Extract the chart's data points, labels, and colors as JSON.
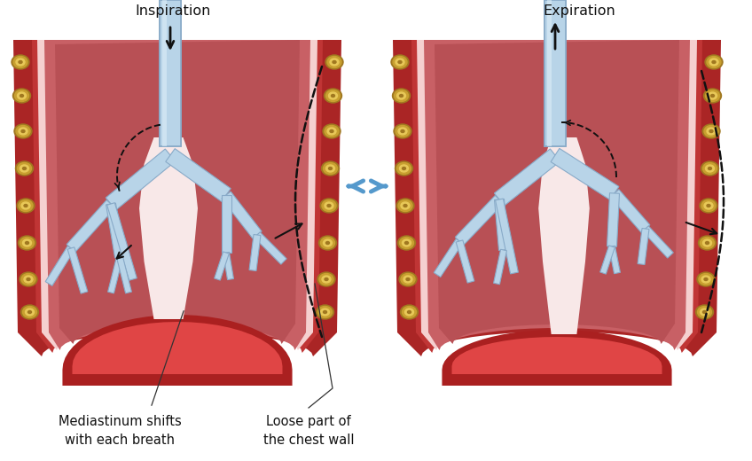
{
  "bg_color": "#ffffff",
  "lung_tissue_dark": "#b85055",
  "lung_tissue_mid": "#c86065",
  "lung_tissue_light": "#d07075",
  "chest_wall_dark": "#aa2525",
  "chest_wall_mid": "#c03535",
  "pleura_white": "#f5d0d0",
  "pleura_pink": "#f0b0b0",
  "airway_fill": "#b8d4e8",
  "airway_edge": "#88aac8",
  "airway_white": "#ddeef8",
  "diaphragm_dark": "#aa2020",
  "diaphragm_mid": "#cc3535",
  "diaphragm_light": "#e04545",
  "rib_gold": "#c8a030",
  "rib_light": "#e8c858",
  "rib_dark": "#a07820",
  "insp_label": "Inspiration",
  "exp_label": "Expiration",
  "med_label": "Mediastinum shifts\nwith each breath",
  "loose_label": "Loose part of\nthe chest wall",
  "label_fontsize": 10.5,
  "arrow_black": "#111111",
  "blue_arrow": "#5599cc"
}
